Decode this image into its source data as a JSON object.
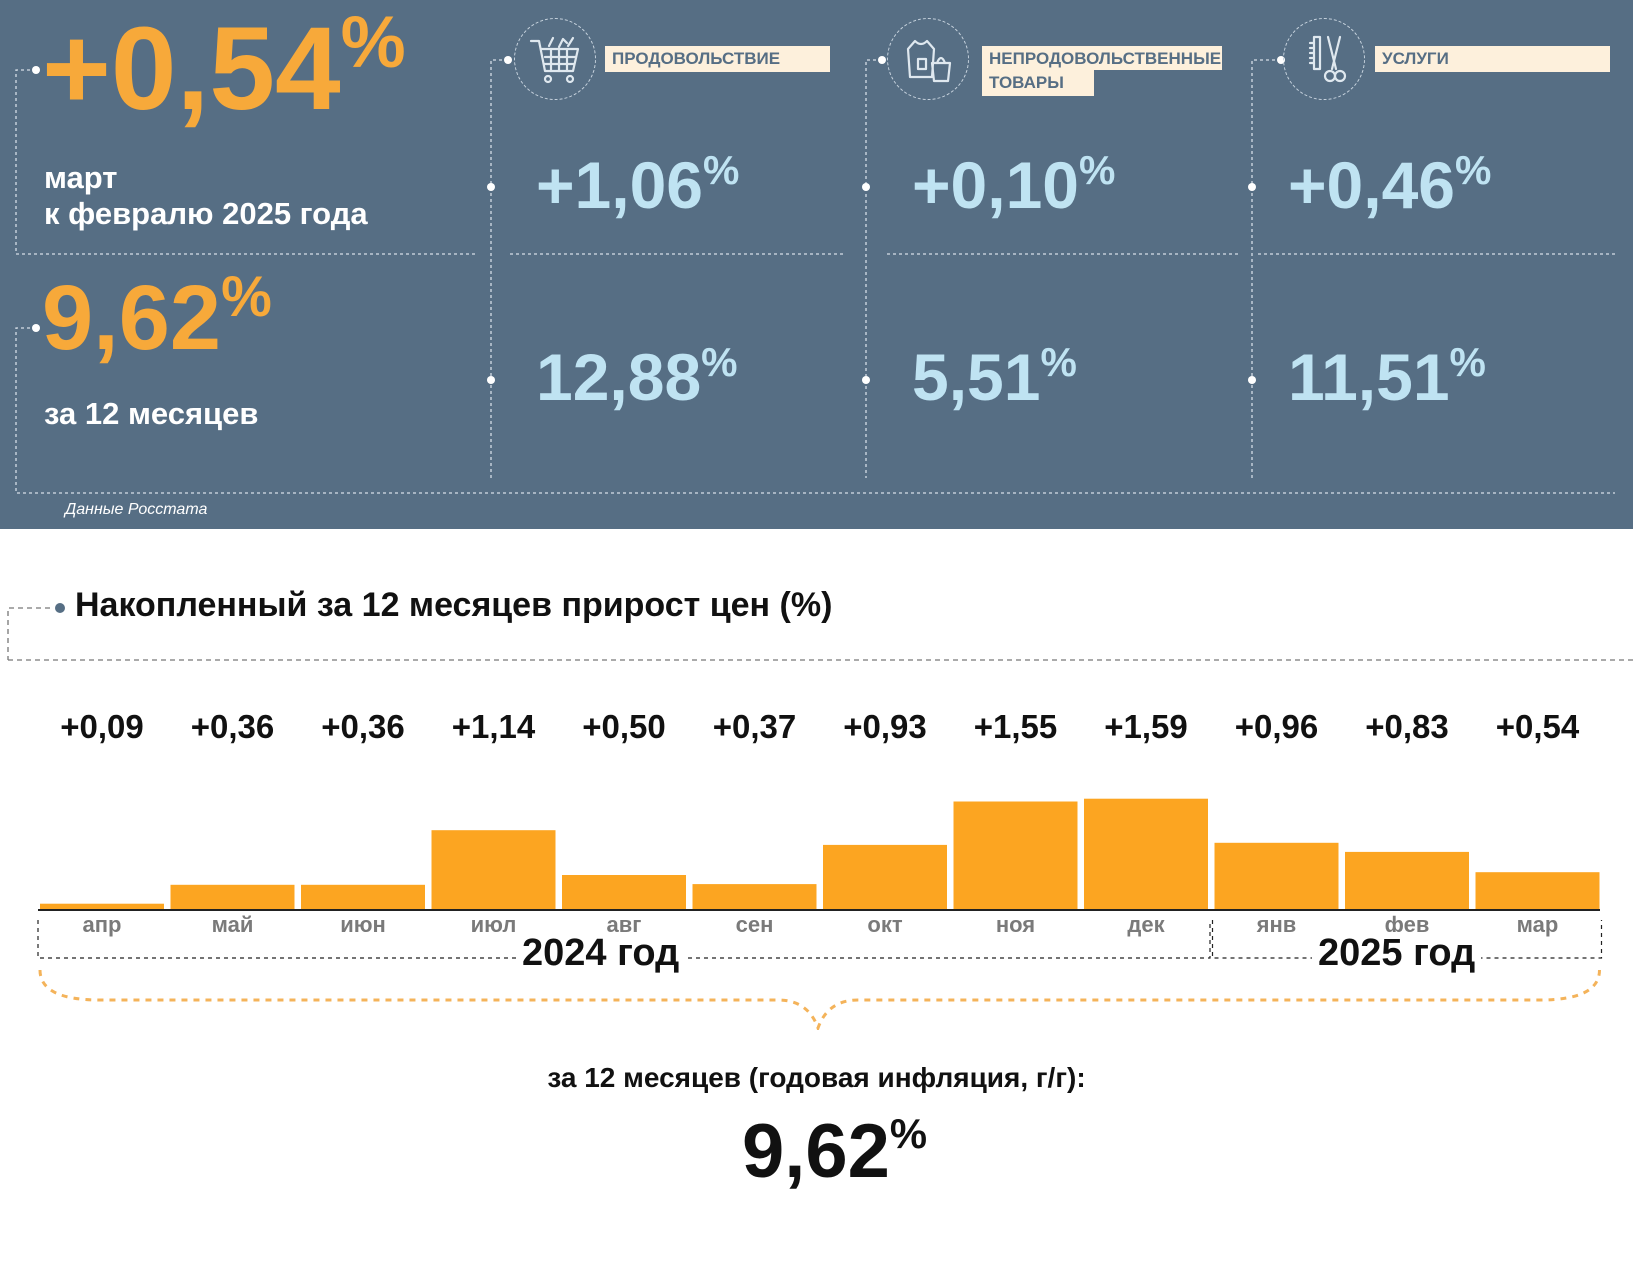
{
  "headline": {
    "monthly_value": "+0,54",
    "monthly_unit": "%",
    "monthly_label_line1": "март",
    "monthly_label_line2": "к февралю 2025 года",
    "annual_value": "9,62",
    "annual_unit": "%",
    "annual_label": "за 12 месяцев"
  },
  "categories": [
    {
      "label": "ПРОДОВОЛЬСТВИЕ",
      "icon": "shopping-cart-icon",
      "monthly": "+1,06",
      "annual": "12,88",
      "unit": "%"
    },
    {
      "label": "НЕПРОДОВОЛЬСТВЕННЫЕ ТОВАРЫ",
      "label_line1": "НЕПРОДОВОЛЬСТВЕННЫЕ",
      "label_line2": "ТОВАРЫ",
      "icon": "clothing-bag-icon",
      "monthly": "+0,10",
      "annual": "5,51",
      "unit": "%"
    },
    {
      "label": "УСЛУГИ",
      "icon": "scissors-comb-icon",
      "monthly": "+0,46",
      "annual": "11,51",
      "unit": "%"
    }
  ],
  "source": "Данные Росстата",
  "colors": {
    "panel": "#566e84",
    "accent_orange": "#f7a93a",
    "value_blue": "#bfe3f2",
    "bar": "#fca521",
    "label_bg": "#fdf0dc"
  },
  "chart_data": {
    "type": "bar",
    "title": "Накопленный за 12 месяцев прирост цен (%)",
    "categories": [
      "апр",
      "май",
      "июн",
      "июл",
      "авг",
      "сен",
      "окт",
      "ноя",
      "дек",
      "янв",
      "фев",
      "мар"
    ],
    "values": [
      0.09,
      0.36,
      0.36,
      1.14,
      0.5,
      0.37,
      0.93,
      1.55,
      1.59,
      0.96,
      0.83,
      0.54
    ],
    "value_labels": [
      "+0,09",
      "+0,36",
      "+0,36",
      "+1,14",
      "+0,50",
      "+0,37",
      "+0,93",
      "+1,55",
      "+1,59",
      "+0,96",
      "+0,83",
      "+0,54"
    ],
    "year_groups": [
      {
        "label": "2024 год",
        "from": "апр",
        "to": "дек"
      },
      {
        "label": "2025 год",
        "from": "янв",
        "to": "мар"
      }
    ],
    "annual_label": "за 12 месяцев (годовая инфляция, г/г):",
    "annual_value": "9,62",
    "annual_unit": "%",
    "grid": false,
    "axis_ticks_visible": false
  }
}
